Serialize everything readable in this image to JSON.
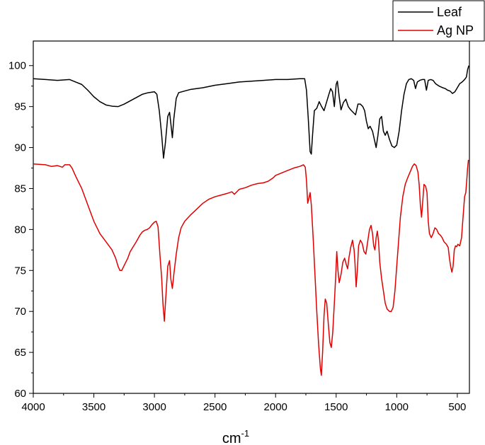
{
  "chart_data": {
    "type": "line",
    "title": "",
    "xlabel": "cm",
    "xlabel_superscript": "-1",
    "ylabel": "",
    "xlim": [
      4000,
      400
    ],
    "ylim": [
      60,
      103
    ],
    "x_reversed": true,
    "grid": false,
    "legend_position": "top-right",
    "x_ticks": [
      4000,
      3500,
      3000,
      2500,
      2000,
      1500,
      1000,
      500
    ],
    "y_ticks": [
      60,
      65,
      70,
      75,
      80,
      85,
      90,
      95,
      100
    ],
    "series": [
      {
        "name": "Leaf",
        "color": "#000000",
        "points": [
          [
            4000,
            98.4
          ],
          [
            3900,
            98.3
          ],
          [
            3800,
            98.2
          ],
          [
            3700,
            98.3
          ],
          [
            3650,
            98.0
          ],
          [
            3600,
            97.7
          ],
          [
            3550,
            97.0
          ],
          [
            3500,
            96.2
          ],
          [
            3450,
            95.6
          ],
          [
            3400,
            95.2
          ],
          [
            3350,
            95.05
          ],
          [
            3300,
            95.0
          ],
          [
            3250,
            95.3
          ],
          [
            3200,
            95.7
          ],
          [
            3150,
            96.1
          ],
          [
            3100,
            96.5
          ],
          [
            3050,
            96.7
          ],
          [
            3000,
            96.8
          ],
          [
            2980,
            96.5
          ],
          [
            2960,
            94.5
          ],
          [
            2940,
            91.5
          ],
          [
            2925,
            88.7
          ],
          [
            2910,
            90.5
          ],
          [
            2890,
            93.8
          ],
          [
            2875,
            94.3
          ],
          [
            2865,
            93.0
          ],
          [
            2852,
            91.2
          ],
          [
            2840,
            93.5
          ],
          [
            2820,
            96.0
          ],
          [
            2800,
            96.7
          ],
          [
            2700,
            97.1
          ],
          [
            2600,
            97.3
          ],
          [
            2500,
            97.6
          ],
          [
            2400,
            97.8
          ],
          [
            2300,
            98.0
          ],
          [
            2200,
            98.1
          ],
          [
            2100,
            98.2
          ],
          [
            2000,
            98.3
          ],
          [
            1900,
            98.3
          ],
          [
            1800,
            98.4
          ],
          [
            1760,
            98.4
          ],
          [
            1745,
            97.0
          ],
          [
            1730,
            93.5
          ],
          [
            1715,
            89.5
          ],
          [
            1705,
            89.2
          ],
          [
            1695,
            91.5
          ],
          [
            1680,
            94.5
          ],
          [
            1660,
            94.8
          ],
          [
            1640,
            95.6
          ],
          [
            1620,
            95.0
          ],
          [
            1600,
            94.5
          ],
          [
            1580,
            95.5
          ],
          [
            1560,
            96.5
          ],
          [
            1545,
            97.2
          ],
          [
            1530,
            96.8
          ],
          [
            1515,
            95.0
          ],
          [
            1500,
            97.7
          ],
          [
            1490,
            98.1
          ],
          [
            1475,
            96.2
          ],
          [
            1460,
            94.6
          ],
          [
            1440,
            95.5
          ],
          [
            1420,
            95.9
          ],
          [
            1400,
            95.0
          ],
          [
            1380,
            94.6
          ],
          [
            1360,
            94.3
          ],
          [
            1340,
            94.0
          ],
          [
            1320,
            95.3
          ],
          [
            1300,
            95.3
          ],
          [
            1280,
            95.0
          ],
          [
            1265,
            94.5
          ],
          [
            1250,
            93.2
          ],
          [
            1235,
            92.3
          ],
          [
            1220,
            92.6
          ],
          [
            1200,
            92.0
          ],
          [
            1185,
            91.0
          ],
          [
            1170,
            90.0
          ],
          [
            1155,
            91.5
          ],
          [
            1140,
            93.5
          ],
          [
            1125,
            93.8
          ],
          [
            1110,
            92.0
          ],
          [
            1095,
            91.5
          ],
          [
            1080,
            92.0
          ],
          [
            1060,
            91.0
          ],
          [
            1040,
            90.2
          ],
          [
            1020,
            90.0
          ],
          [
            1000,
            90.3
          ],
          [
            980,
            92.0
          ],
          [
            960,
            94.5
          ],
          [
            940,
            96.5
          ],
          [
            920,
            97.8
          ],
          [
            900,
            98.3
          ],
          [
            880,
            98.4
          ],
          [
            860,
            98.2
          ],
          [
            845,
            97.2
          ],
          [
            830,
            98.0
          ],
          [
            810,
            98.2
          ],
          [
            790,
            98.3
          ],
          [
            770,
            98.3
          ],
          [
            755,
            97.0
          ],
          [
            740,
            98.2
          ],
          [
            720,
            98.3
          ],
          [
            700,
            98.2
          ],
          [
            680,
            97.8
          ],
          [
            650,
            97.5
          ],
          [
            620,
            97.3
          ],
          [
            600,
            97.2
          ],
          [
            580,
            97.0
          ],
          [
            560,
            96.9
          ],
          [
            540,
            96.6
          ],
          [
            520,
            96.8
          ],
          [
            500,
            97.3
          ],
          [
            480,
            97.8
          ],
          [
            460,
            98.0
          ],
          [
            440,
            98.3
          ],
          [
            425,
            98.6
          ],
          [
            415,
            99.5
          ],
          [
            405,
            100.0
          ]
        ]
      },
      {
        "name": "Ag NP",
        "color": "#e00000",
        "points": [
          [
            4000,
            88.0
          ],
          [
            3900,
            87.9
          ],
          [
            3850,
            87.7
          ],
          [
            3800,
            87.8
          ],
          [
            3760,
            87.6
          ],
          [
            3740,
            87.9
          ],
          [
            3700,
            87.9
          ],
          [
            3680,
            87.5
          ],
          [
            3650,
            86.5
          ],
          [
            3600,
            85.0
          ],
          [
            3550,
            83.0
          ],
          [
            3500,
            81.0
          ],
          [
            3450,
            79.5
          ],
          [
            3400,
            78.5
          ],
          [
            3350,
            77.5
          ],
          [
            3320,
            76.5
          ],
          [
            3300,
            75.5
          ],
          [
            3285,
            75.0
          ],
          [
            3270,
            75.0
          ],
          [
            3250,
            75.6
          ],
          [
            3220,
            76.5
          ],
          [
            3200,
            77.3
          ],
          [
            3150,
            78.5
          ],
          [
            3120,
            79.3
          ],
          [
            3100,
            79.7
          ],
          [
            3080,
            79.9
          ],
          [
            3060,
            80.0
          ],
          [
            3040,
            80.2
          ],
          [
            3020,
            80.6
          ],
          [
            3000,
            80.9
          ],
          [
            2985,
            81.0
          ],
          [
            2970,
            80.3
          ],
          [
            2955,
            77.0
          ],
          [
            2940,
            74.0
          ],
          [
            2930,
            71.0
          ],
          [
            2918,
            68.8
          ],
          [
            2905,
            72.0
          ],
          [
            2890,
            75.5
          ],
          [
            2875,
            76.2
          ],
          [
            2865,
            74.0
          ],
          [
            2852,
            72.8
          ],
          [
            2840,
            74.5
          ],
          [
            2820,
            77.0
          ],
          [
            2800,
            79.0
          ],
          [
            2780,
            80.2
          ],
          [
            2750,
            81.0
          ],
          [
            2700,
            81.8
          ],
          [
            2650,
            82.5
          ],
          [
            2600,
            83.2
          ],
          [
            2550,
            83.7
          ],
          [
            2500,
            84.0
          ],
          [
            2450,
            84.2
          ],
          [
            2400,
            84.4
          ],
          [
            2360,
            84.6
          ],
          [
            2340,
            84.3
          ],
          [
            2320,
            84.6
          ],
          [
            2300,
            84.9
          ],
          [
            2250,
            85.1
          ],
          [
            2200,
            85.4
          ],
          [
            2150,
            85.6
          ],
          [
            2100,
            85.7
          ],
          [
            2060,
            85.9
          ],
          [
            2020,
            86.3
          ],
          [
            2000,
            86.6
          ],
          [
            1950,
            86.9
          ],
          [
            1900,
            87.2
          ],
          [
            1850,
            87.5
          ],
          [
            1800,
            87.7
          ],
          [
            1770,
            87.9
          ],
          [
            1755,
            87.6
          ],
          [
            1745,
            86.0
          ],
          [
            1735,
            83.2
          ],
          [
            1725,
            83.8
          ],
          [
            1715,
            84.5
          ],
          [
            1705,
            83.0
          ],
          [
            1690,
            79.0
          ],
          [
            1675,
            74.5
          ],
          [
            1660,
            70.0
          ],
          [
            1645,
            66.0
          ],
          [
            1630,
            63.0
          ],
          [
            1622,
            62.2
          ],
          [
            1612,
            65.0
          ],
          [
            1600,
            69.5
          ],
          [
            1590,
            71.5
          ],
          [
            1578,
            71.0
          ],
          [
            1565,
            68.5
          ],
          [
            1552,
            66.2
          ],
          [
            1540,
            65.6
          ],
          [
            1528,
            67.5
          ],
          [
            1515,
            71.0
          ],
          [
            1503,
            74.5
          ],
          [
            1495,
            77.3
          ],
          [
            1485,
            75.0
          ],
          [
            1475,
            73.5
          ],
          [
            1460,
            74.5
          ],
          [
            1445,
            76.0
          ],
          [
            1430,
            76.5
          ],
          [
            1418,
            75.8
          ],
          [
            1405,
            75.2
          ],
          [
            1395,
            76.5
          ],
          [
            1380,
            77.8
          ],
          [
            1365,
            78.7
          ],
          [
            1352,
            77.5
          ],
          [
            1345,
            76.0
          ],
          [
            1335,
            73.0
          ],
          [
            1325,
            75.0
          ],
          [
            1315,
            78.0
          ],
          [
            1300,
            78.7
          ],
          [
            1285,
            78.3
          ],
          [
            1270,
            77.3
          ],
          [
            1255,
            77.0
          ],
          [
            1240,
            78.5
          ],
          [
            1225,
            80.0
          ],
          [
            1212,
            80.5
          ],
          [
            1200,
            79.5
          ],
          [
            1190,
            78.0
          ],
          [
            1180,
            77.5
          ],
          [
            1170,
            79.0
          ],
          [
            1160,
            79.8
          ],
          [
            1150,
            78.5
          ],
          [
            1140,
            76.0
          ],
          [
            1125,
            74.0
          ],
          [
            1110,
            72.5
          ],
          [
            1095,
            71.0
          ],
          [
            1080,
            70.3
          ],
          [
            1060,
            70.0
          ],
          [
            1045,
            70.0
          ],
          [
            1030,
            70.5
          ],
          [
            1015,
            72.5
          ],
          [
            1000,
            75.5
          ],
          [
            985,
            78.5
          ],
          [
            970,
            81.5
          ],
          [
            950,
            84.0
          ],
          [
            930,
            85.5
          ],
          [
            910,
            86.3
          ],
          [
            890,
            87.0
          ],
          [
            870,
            87.7
          ],
          [
            855,
            88.0
          ],
          [
            840,
            87.8
          ],
          [
            825,
            87.0
          ],
          [
            815,
            85.5
          ],
          [
            805,
            83.0
          ],
          [
            795,
            81.5
          ],
          [
            785,
            83.5
          ],
          [
            775,
            85.5
          ],
          [
            762,
            85.3
          ],
          [
            750,
            84.5
          ],
          [
            740,
            81.0
          ],
          [
            730,
            79.5
          ],
          [
            715,
            79.0
          ],
          [
            700,
            79.5
          ],
          [
            685,
            80.2
          ],
          [
            670,
            80.0
          ],
          [
            655,
            79.5
          ],
          [
            640,
            79.3
          ],
          [
            625,
            79.0
          ],
          [
            610,
            78.5
          ],
          [
            590,
            78.2
          ],
          [
            575,
            77.8
          ],
          [
            565,
            76.5
          ],
          [
            555,
            75.5
          ],
          [
            545,
            74.8
          ],
          [
            535,
            75.5
          ],
          [
            525,
            77.5
          ],
          [
            515,
            78.0
          ],
          [
            505,
            77.9
          ],
          [
            495,
            78.2
          ],
          [
            480,
            78.0
          ],
          [
            465,
            79.0
          ],
          [
            450,
            82.0
          ],
          [
            440,
            84.0
          ],
          [
            430,
            84.5
          ],
          [
            422,
            86.0
          ],
          [
            415,
            87.5
          ],
          [
            408,
            88.5
          ]
        ]
      }
    ]
  }
}
